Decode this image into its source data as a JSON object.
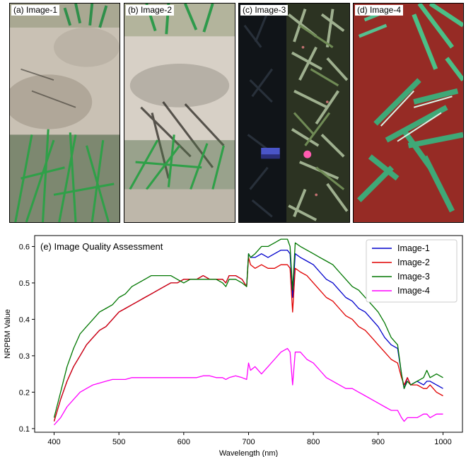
{
  "panels": [
    {
      "label": "(a) Image-1"
    },
    {
      "label": "(b) Image-2"
    },
    {
      "label": "(c) Image-3"
    },
    {
      "label": "(d) Image-4"
    }
  ],
  "chart_data": {
    "type": "line",
    "title": "(e) Image Quality Assessment",
    "xlabel": "Wavelength (nm)",
    "ylabel": "NRPBM Value",
    "xlim": [
      370,
      1030
    ],
    "ylim": [
      0.09,
      0.63
    ],
    "xticks": [
      400,
      500,
      600,
      700,
      800,
      900,
      1000
    ],
    "yticks": [
      0.1,
      0.2,
      0.3,
      0.4,
      0.5,
      0.6
    ],
    "grid": false,
    "legend_position": "top-right",
    "x": [
      400,
      410,
      420,
      430,
      440,
      450,
      460,
      470,
      480,
      490,
      500,
      510,
      520,
      530,
      540,
      550,
      560,
      570,
      580,
      590,
      600,
      610,
      620,
      630,
      640,
      650,
      660,
      665,
      670,
      680,
      690,
      697,
      700,
      703,
      710,
      720,
      730,
      740,
      750,
      760,
      764,
      768,
      772,
      780,
      790,
      800,
      810,
      820,
      830,
      840,
      850,
      860,
      870,
      880,
      890,
      900,
      910,
      920,
      930,
      936,
      940,
      945,
      950,
      960,
      970,
      975,
      980,
      990,
      1000
    ],
    "series": [
      {
        "name": "Image-1",
        "color": "#0000cc",
        "values": [
          0.12,
          0.18,
          0.23,
          0.27,
          0.3,
          0.33,
          0.35,
          0.37,
          0.38,
          0.4,
          0.42,
          0.43,
          0.44,
          0.45,
          0.46,
          0.47,
          0.48,
          0.49,
          0.5,
          0.5,
          0.51,
          0.51,
          0.51,
          0.52,
          0.51,
          0.51,
          0.51,
          0.5,
          0.52,
          0.52,
          0.51,
          0.49,
          0.58,
          0.57,
          0.57,
          0.58,
          0.57,
          0.58,
          0.59,
          0.59,
          0.58,
          0.46,
          0.58,
          0.57,
          0.56,
          0.55,
          0.53,
          0.51,
          0.5,
          0.48,
          0.46,
          0.45,
          0.43,
          0.42,
          0.4,
          0.38,
          0.35,
          0.33,
          0.32,
          0.25,
          0.21,
          0.24,
          0.22,
          0.23,
          0.22,
          0.23,
          0.23,
          0.22,
          0.21
        ]
      },
      {
        "name": "Image-2",
        "color": "#e00000",
        "values": [
          0.12,
          0.18,
          0.23,
          0.27,
          0.3,
          0.33,
          0.35,
          0.37,
          0.38,
          0.4,
          0.42,
          0.43,
          0.44,
          0.45,
          0.46,
          0.47,
          0.48,
          0.49,
          0.5,
          0.5,
          0.51,
          0.51,
          0.51,
          0.52,
          0.51,
          0.51,
          0.51,
          0.5,
          0.52,
          0.52,
          0.51,
          0.49,
          0.57,
          0.55,
          0.54,
          0.55,
          0.54,
          0.54,
          0.55,
          0.55,
          0.54,
          0.42,
          0.54,
          0.53,
          0.52,
          0.5,
          0.48,
          0.46,
          0.45,
          0.43,
          0.41,
          0.4,
          0.38,
          0.37,
          0.35,
          0.33,
          0.31,
          0.29,
          0.28,
          0.24,
          0.22,
          0.24,
          0.22,
          0.22,
          0.21,
          0.21,
          0.22,
          0.2,
          0.19
        ]
      },
      {
        "name": "Image-3",
        "color": "#007700",
        "values": [
          0.13,
          0.2,
          0.27,
          0.32,
          0.36,
          0.38,
          0.4,
          0.42,
          0.43,
          0.44,
          0.46,
          0.47,
          0.49,
          0.5,
          0.51,
          0.52,
          0.52,
          0.52,
          0.52,
          0.51,
          0.5,
          0.51,
          0.51,
          0.51,
          0.51,
          0.51,
          0.5,
          0.49,
          0.51,
          0.51,
          0.5,
          0.49,
          0.58,
          0.57,
          0.58,
          0.6,
          0.6,
          0.61,
          0.62,
          0.62,
          0.6,
          0.48,
          0.61,
          0.6,
          0.59,
          0.58,
          0.57,
          0.56,
          0.55,
          0.53,
          0.51,
          0.49,
          0.48,
          0.46,
          0.44,
          0.42,
          0.39,
          0.35,
          0.33,
          0.25,
          0.21,
          0.23,
          0.22,
          0.23,
          0.24,
          0.26,
          0.24,
          0.25,
          0.24
        ]
      },
      {
        "name": "Image-4",
        "color": "#ff00ff",
        "values": [
          0.11,
          0.13,
          0.16,
          0.18,
          0.2,
          0.21,
          0.22,
          0.225,
          0.23,
          0.235,
          0.235,
          0.235,
          0.24,
          0.24,
          0.24,
          0.24,
          0.24,
          0.24,
          0.24,
          0.24,
          0.24,
          0.24,
          0.24,
          0.245,
          0.245,
          0.24,
          0.24,
          0.235,
          0.24,
          0.245,
          0.24,
          0.235,
          0.28,
          0.26,
          0.27,
          0.25,
          0.27,
          0.29,
          0.31,
          0.32,
          0.31,
          0.22,
          0.31,
          0.31,
          0.29,
          0.28,
          0.26,
          0.24,
          0.23,
          0.22,
          0.21,
          0.21,
          0.2,
          0.19,
          0.18,
          0.17,
          0.16,
          0.15,
          0.15,
          0.13,
          0.12,
          0.13,
          0.13,
          0.13,
          0.14,
          0.14,
          0.13,
          0.14,
          0.14
        ]
      }
    ]
  }
}
